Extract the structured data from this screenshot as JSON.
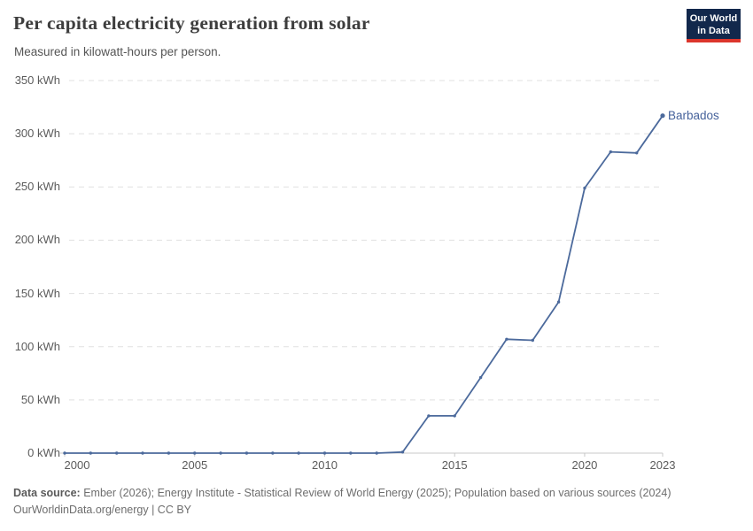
{
  "header": {
    "title": "Per capita electricity generation from solar",
    "subtitle": "Measured in kilowatt-hours per person.",
    "logo_line1": "Our World",
    "logo_line2": "in Data"
  },
  "chart_data": {
    "type": "line",
    "title": "Per capita electricity generation from solar",
    "subtitle": "Measured in kilowatt-hours per person.",
    "unit": "kWh",
    "x": [
      2000,
      2001,
      2002,
      2003,
      2004,
      2005,
      2006,
      2007,
      2008,
      2009,
      2010,
      2011,
      2012,
      2013,
      2014,
      2015,
      2016,
      2017,
      2018,
      2019,
      2020,
      2021,
      2022,
      2023
    ],
    "series": [
      {
        "name": "Barbados",
        "values": [
          0,
          0,
          0,
          0,
          0,
          0,
          0,
          0,
          0,
          0,
          0,
          0,
          0,
          1,
          35,
          35,
          71,
          107,
          106,
          142,
          249,
          283,
          282,
          317
        ]
      }
    ],
    "xlim": [
      2000,
      2023
    ],
    "ylim": [
      0,
      350
    ],
    "xticks": [
      2000,
      2005,
      2010,
      2015,
      2020,
      2023
    ],
    "yticks": [
      0,
      50,
      100,
      150,
      200,
      250,
      300,
      350
    ],
    "ytick_suffix": " kWh",
    "grid": "horizontal-dashed",
    "legend_position": "end-of-line"
  },
  "colors": {
    "line": "#4c6a9c",
    "series_label": "#46629b",
    "grid": "#e0e0e0",
    "axis": "#c8c8c8",
    "tick_text": "#5b5b5b",
    "logo_bg": "#12284c",
    "logo_red": "#dc352c"
  },
  "footer": {
    "datasource_label": "Data source:",
    "datasource_text": " Ember (2026); Energy Institute - Statistical Review of World Energy (2025); Population based on various sources (2024)",
    "license_line": "OurWorldinData.org/energy | CC BY"
  }
}
